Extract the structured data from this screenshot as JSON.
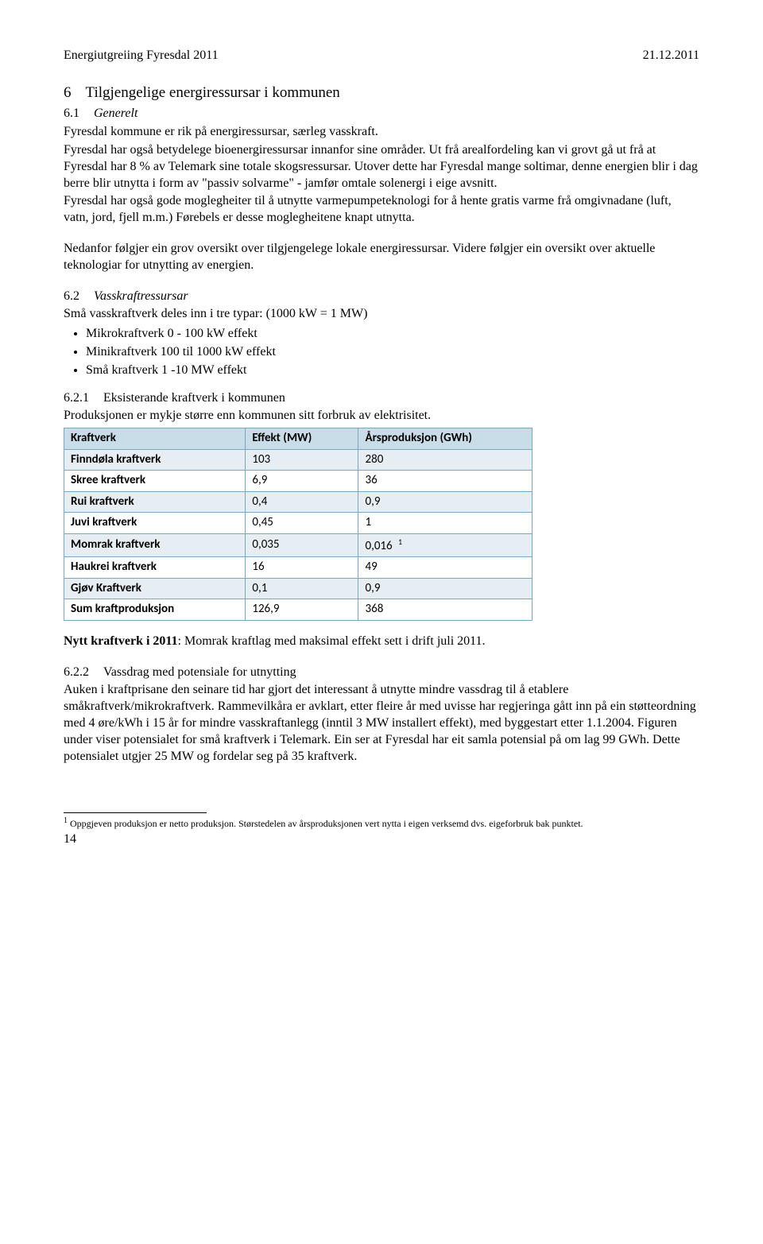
{
  "header": {
    "left": "Energiutgreiing Fyresdal 2011",
    "right": "21.12.2011"
  },
  "sec6": {
    "num": "6",
    "title": "Tilgjengelige energiressursar i kommunen",
    "s61": {
      "num": "6.1",
      "title": "Generelt",
      "p1": "Fyresdal kommune er rik på energiressursar, særleg vasskraft.",
      "p2": "Fyresdal har også betydelege bioenergiressursar innanfor sine områder. Ut frå arealfordeling kan vi grovt gå ut frå at Fyresdal har 8 % av Telemark sine totale skogsressursar. Utover dette har Fyresdal mange soltimar, denne energien blir i dag berre blir utnytta i form av \"passiv solvarme\" - jamfør omtale solenergi i eige avsnitt.",
      "p3": "Fyresdal har også gode moglegheiter til å utnytte varmepumpeteknologi for å hente gratis varme frå omgivnadane (luft, vatn, jord, fjell m.m.) Førebels er desse moglegheitene knapt utnytta.",
      "p4": "Nedanfor følgjer ein grov oversikt over tilgjengelege lokale energiressursar. Videre følgjer ein oversikt over aktuelle teknologiar for utnytting av energien."
    },
    "s62": {
      "num": "6.2",
      "title": "Vasskraftressursar",
      "intro": "Små vasskraftverk deles inn i tre typar: (1000 kW = 1 MW)",
      "bullets": [
        "Mikrokraftverk 0 - 100 kW effekt",
        "Minikraftverk 100 til 1000 kW effekt",
        "Små kraftverk 1 -10 MW effekt"
      ],
      "s621": {
        "num": "6.2.1",
        "title": "Eksisterande kraftverk i kommunen",
        "intro": "Produksjonen er mykje større enn kommunen sitt forbruk av elektrisitet.",
        "table": {
          "columns": [
            "Kraftverk",
            "Effekt (MW)",
            "Årsproduksjon (GWh)"
          ],
          "col_widths": [
            "230px",
            "140px",
            "220px"
          ],
          "rows": [
            {
              "cells": [
                "Finndøla kraftverk",
                "103",
                "280"
              ],
              "alt": true
            },
            {
              "cells": [
                "Skree kraftverk",
                "6,9",
                "36"
              ],
              "alt": false
            },
            {
              "cells": [
                "Rui kraftverk",
                "0,4",
                "0,9"
              ],
              "alt": true
            },
            {
              "cells": [
                "Juvi kraftverk",
                "0,45",
                "1"
              ],
              "alt": false
            },
            {
              "cells": [
                "Momrak kraftverk",
                "0,035",
                "0,016"
              ],
              "alt": true,
              "note_ref": "1"
            },
            {
              "cells": [
                "Haukrei kraftverk",
                "16",
                "49"
              ],
              "alt": false
            },
            {
              "cells": [
                "Gjøv Kraftverk",
                "0,1",
                "0,9"
              ],
              "alt": true
            },
            {
              "cells": [
                "Sum kraftproduksjon",
                "126,9",
                "368"
              ],
              "alt": false
            }
          ]
        },
        "nytt_label": "Nytt kraftverk i 2011",
        "nytt_text": ": Momrak kraftlag med maksimal effekt sett i drift juli 2011."
      },
      "s622": {
        "num": "6.2.2",
        "title": "Vassdrag med potensiale for utnytting",
        "p": "Auken i kraftprisane den seinare tid har gjort det interessant å utnytte mindre vassdrag til å etablere småkraftverk/mikrokraftverk. Rammevilkåra er avklart, etter fleire år med uvisse har regjeringa gått inn på ein støtteordning med 4 øre/kWh i 15 år for mindre vasskraftanlegg (inntil 3 MW installert effekt), med byggestart etter 1.1.2004. Figuren under viser potensialet for små kraftverk i Telemark. Ein ser at Fyresdal har eit samla potensial på om lag 99 GWh. Dette potensialet utgjer 25 MW og fordelar seg på 35 kraftverk."
      }
    }
  },
  "footnote": {
    "ref": "1",
    "text": "Oppgjeven produksjon er netto produksjon. Størstedelen av årsproduksjonen vert nytta i eigen verksemd dvs. eigeforbruk bak punktet."
  },
  "page_number": "14",
  "colors": {
    "table_border": "#7aa6c2",
    "table_header_bg": "#c8dde8",
    "table_alt_bg": "#e6eef3"
  }
}
